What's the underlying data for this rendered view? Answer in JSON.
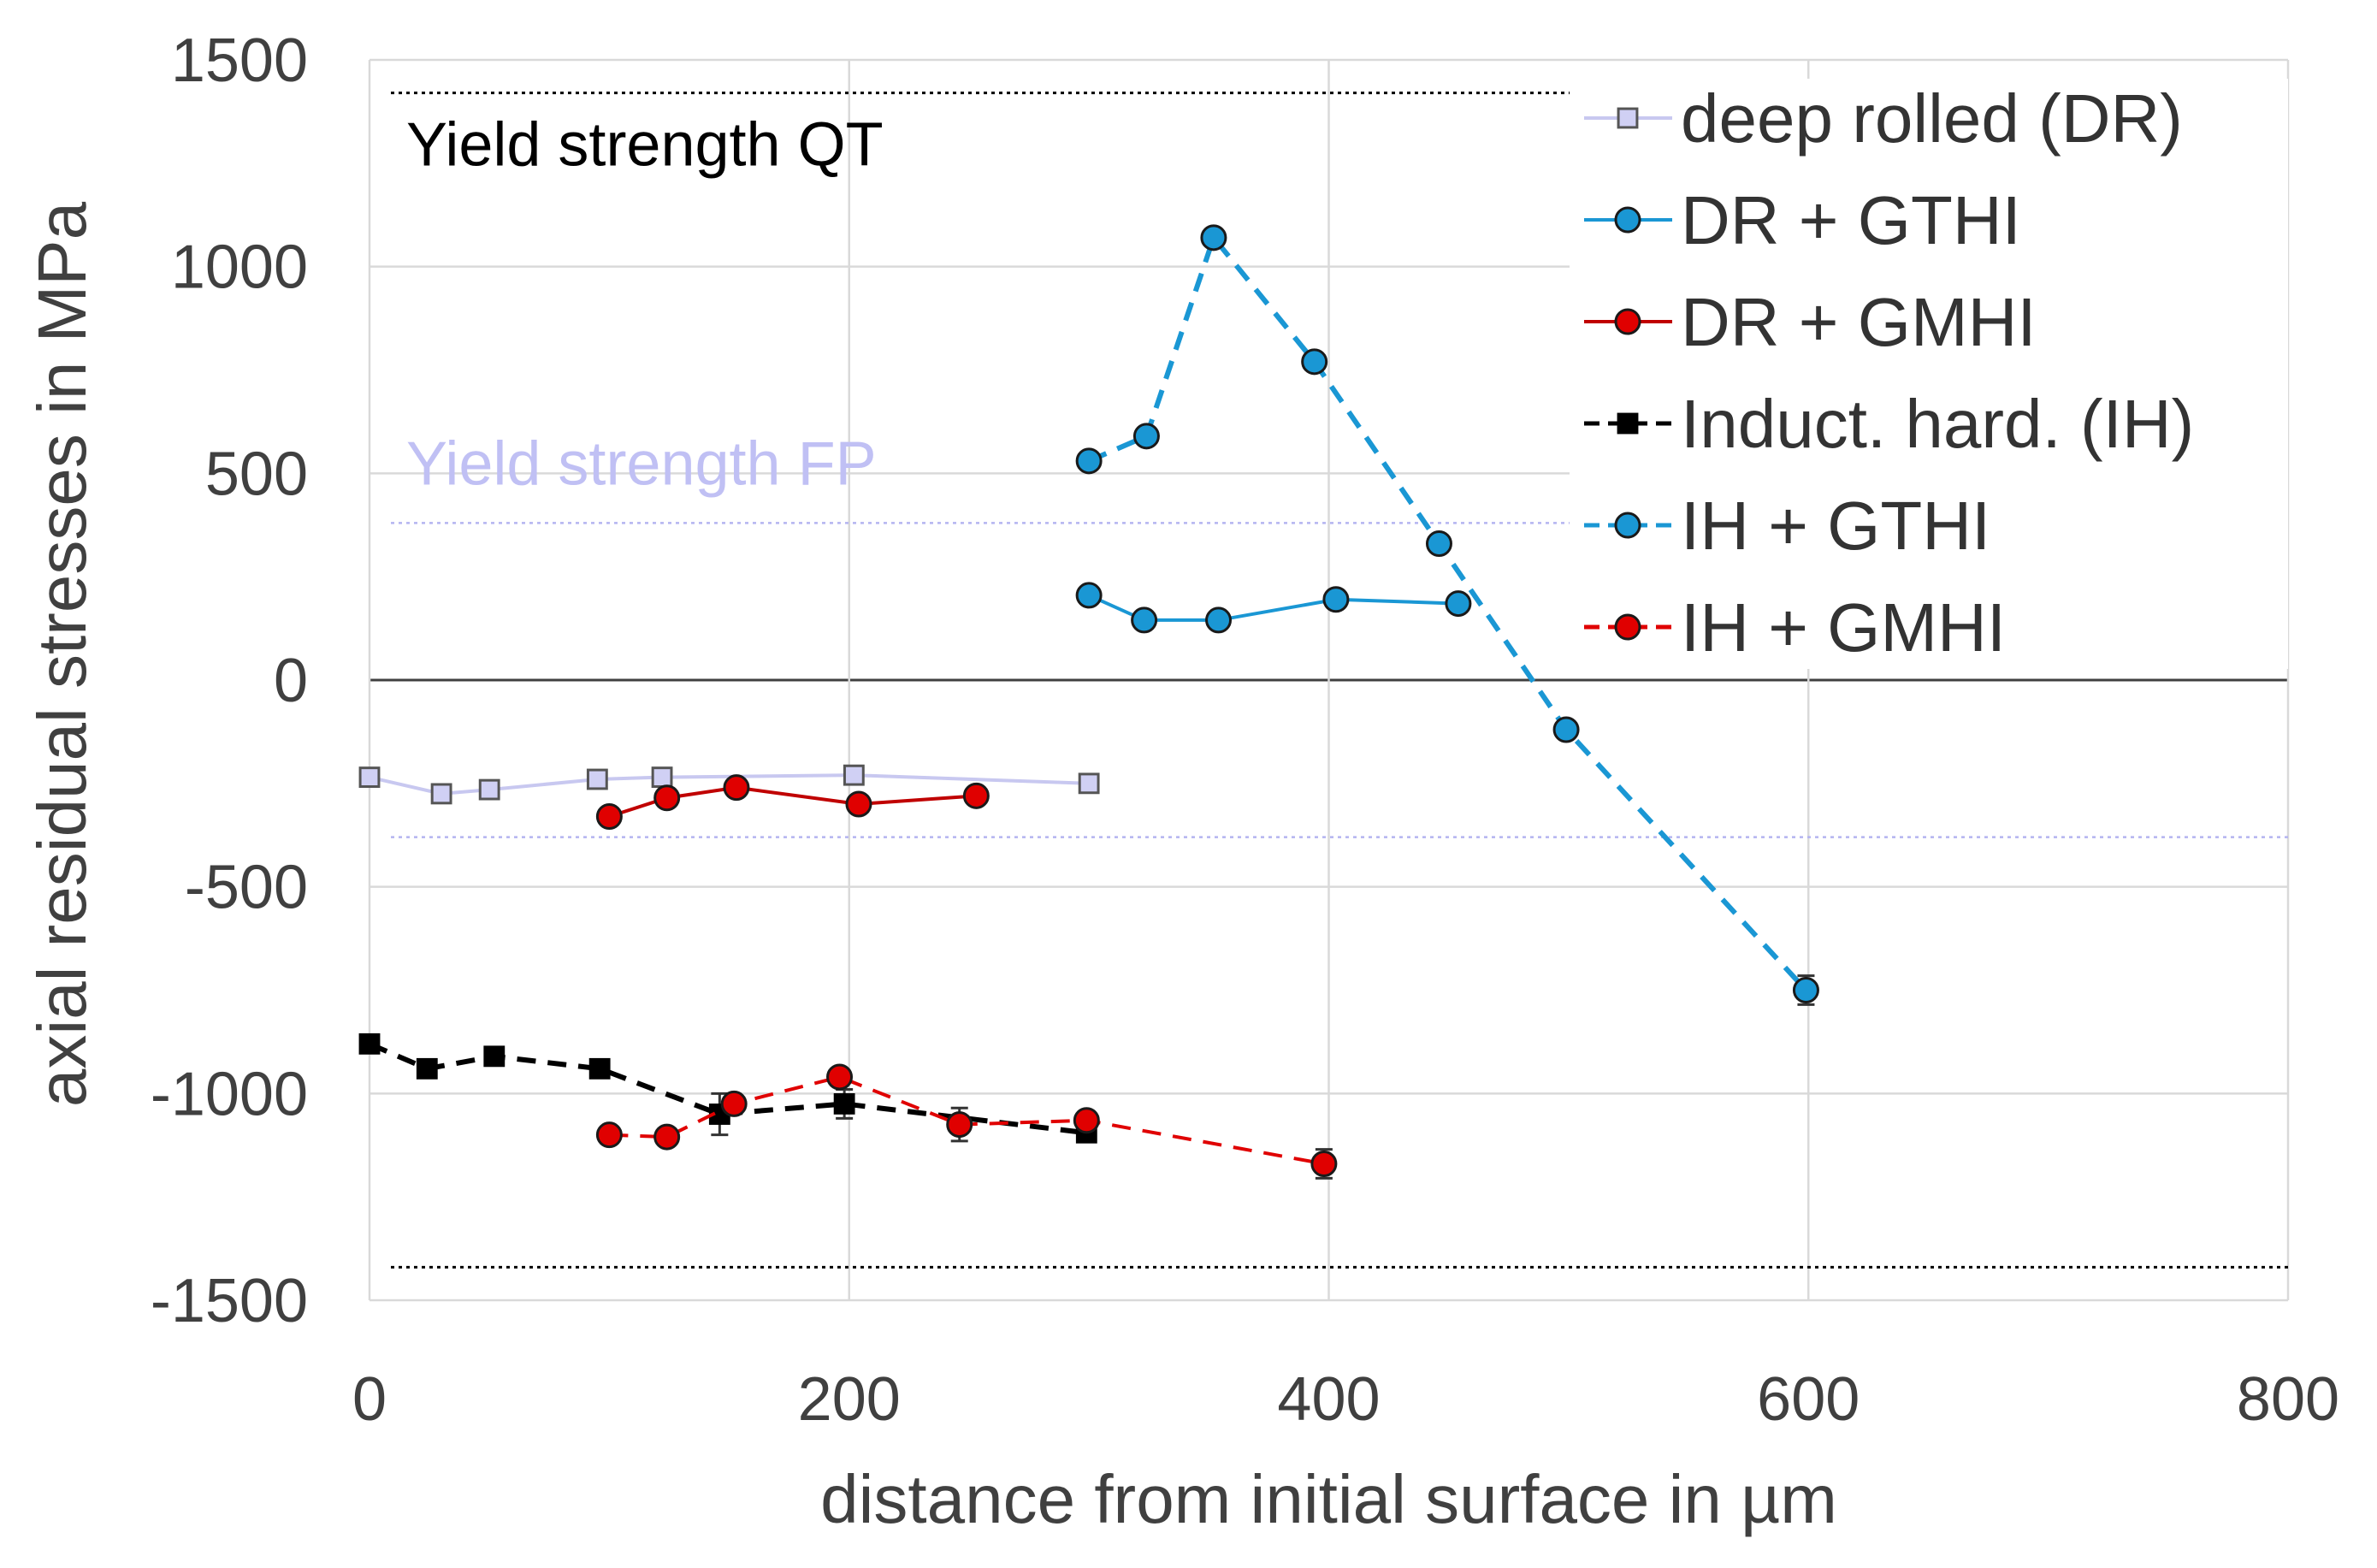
{
  "chart_data": {
    "type": "line",
    "xlabel": "distance from initial surface in µm",
    "ylabel": "axial residual stresses in MPa",
    "xlim": [
      0,
      800
    ],
    "ylim": [
      -1500,
      1500
    ],
    "xticks": [
      0,
      200,
      400,
      600,
      800
    ],
    "yticks": [
      -1500,
      -1000,
      -500,
      0,
      500,
      1000,
      1500
    ],
    "xtick_labels": [
      "0",
      "200",
      "400",
      "600",
      "800"
    ],
    "ytick_labels": [
      "-1500",
      "-1000",
      "-500",
      "0",
      "500",
      "1000",
      "1500"
    ],
    "grid": true,
    "legend_position": "top-right",
    "reference_lines": [
      {
        "name": "yield-qt-upper",
        "label": "Yield strength QT",
        "y": 1420,
        "color": "#000000",
        "style": "dotted"
      },
      {
        "name": "yield-qt-lower",
        "label": "",
        "y": -1420,
        "color": "#000000",
        "style": "dotted"
      },
      {
        "name": "yield-fp-upper",
        "label": "Yield strength FP",
        "y": 380,
        "color": "#b4b4f0",
        "style": "dotted"
      },
      {
        "name": "yield-fp-lower",
        "label": "",
        "y": -380,
        "color": "#b4b4f0",
        "style": "dotted"
      }
    ],
    "series": [
      {
        "name": "deep rolled (DR)",
        "line_color": "#c8c8f0",
        "line_style": "solid",
        "marker": "square",
        "marker_fill": "#d0d0f4",
        "marker_stroke": "#555555",
        "x": [
          0,
          30,
          50,
          95,
          122,
          202,
          300
        ],
        "y": [
          -235,
          -275,
          -265,
          -240,
          -235,
          -230,
          -250
        ],
        "errors": [
          0,
          0,
          0,
          0,
          0,
          0,
          0
        ]
      },
      {
        "name": "DR + GTHI",
        "line_color": "#1a97d4",
        "line_style": "solid",
        "marker": "circle",
        "marker_fill": "#1a97d4",
        "marker_stroke": "#1a1a1a",
        "x": [
          300,
          323,
          354,
          403,
          454
        ],
        "y": [
          205,
          145,
          145,
          195,
          185
        ],
        "errors": [
          0,
          0,
          0,
          0,
          0
        ]
      },
      {
        "name": "DR + GMHI",
        "line_color": "#c00000",
        "line_style": "solid",
        "marker": "circle",
        "marker_fill": "#e00000",
        "marker_stroke": "#1a1a1a",
        "x": [
          100,
          124,
          153,
          204,
          253
        ],
        "y": [
          -330,
          -285,
          -260,
          -300,
          -280
        ],
        "errors": [
          0,
          0,
          0,
          0,
          0
        ]
      },
      {
        "name": "Induct. hard. (IH)",
        "line_color": "#000000",
        "line_style": "dashed",
        "marker": "square",
        "marker_fill": "#000000",
        "marker_stroke": "#000000",
        "x": [
          0,
          24,
          52,
          96,
          146,
          198,
          299
        ],
        "y": [
          -880,
          -940,
          -910,
          -940,
          -1050,
          -1025,
          -1095
        ],
        "errors": [
          0,
          0,
          0,
          0,
          50,
          35,
          0
        ]
      },
      {
        "name": "IH + GTHI",
        "line_color": "#1a97d4",
        "line_style": "dashed",
        "marker": "circle",
        "marker_fill": "#1a97d4",
        "marker_stroke": "#1a1a1a",
        "x": [
          300,
          324,
          352,
          394,
          446,
          499,
          599
        ],
        "y": [
          530,
          590,
          1070,
          770,
          330,
          -120,
          -750
        ],
        "errors": [
          0,
          0,
          0,
          0,
          0,
          0,
          35
        ]
      },
      {
        "name": "IH + GMHI",
        "line_color": "#e00000",
        "line_style": "dashed",
        "marker": "circle",
        "marker_fill": "#e00000",
        "marker_stroke": "#1a1a1a",
        "x": [
          100,
          124,
          152,
          196,
          246,
          299,
          398
        ],
        "y": [
          -1100,
          -1105,
          -1025,
          -960,
          -1075,
          -1065,
          -1170
        ],
        "errors": [
          0,
          0,
          0,
          0,
          40,
          0,
          35
        ]
      }
    ]
  }
}
